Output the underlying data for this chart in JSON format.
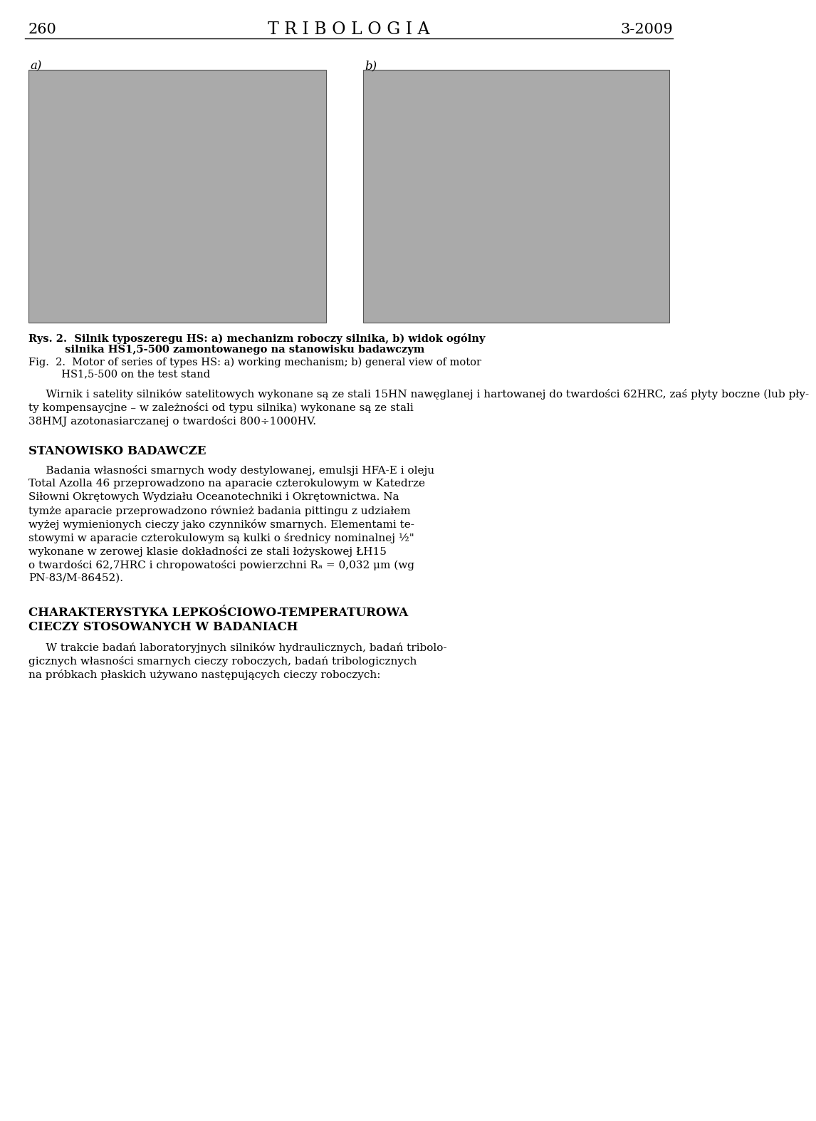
{
  "page_number": "260",
  "journal_title": "T R I B O L O G I A",
  "journal_issue": "3-2009",
  "label_a": "a)",
  "label_b": "b)",
  "rys_line1": "Rys. 2.  Silnik typoszeregu HS: a) mechanizm roboczy silnika, b) widok ogólny",
  "rys_line2": "          silnika HS1,5-500 zamontowanego na stanowisku badawczym",
  "fig_line1": "Fig.  2.  Motor of series of types HS: a) working mechanism; b) general view of motor",
  "fig_line2": "          HS1,5-500 on the test stand",
  "para1_lines": [
    "     Wirnik i satelity silników satelitowych wykonane są ze stali 15HN nawęglanej i hartowanej do twardości 62HRC, zaś płyty boczne (lub pły-",
    "ty kompensaycjne – w zależności od typu silnika) wykonane są ze stali",
    "38HMJ azotonasiarczanej o twardości 800÷1000HV."
  ],
  "section_title1": "STANOWISKO BADAWCZE",
  "para2_lines": [
    "     Badania własności smarnych wody destylowanej, emulsji HFA-E i oleju",
    "Total Azolla 46 przeprowadzono na aparacie czterokulowym w Katedrze",
    "Siłowni Okrętowych Wydziału Oceanotechniki i Okrętownictwa. Na",
    "tymże aparacie przeprowadzono również badania pittingu z udziałem",
    "wyżej wymienionych cieczy jako czynników smarnych. Elementami te-",
    "stowymi w aparacie czterokulowym są kulki o średnicy nominalnej ½\"",
    "wykonane w zerowej klasie dokładności ze stali łożyskowej ŁH15",
    "o twardości 62,7HRC i chropowatości powierzchni Rₐ = 0,032 μm (wg",
    "PN-83/M-86452)."
  ],
  "section_title2_line1": "CHARAKTERYSTYKA LEPKOŚCIOWO-TEMPERATUROWA",
  "section_title2_line2": "CIECZY STOSOWANYCH W BADANIACH",
  "para3_lines": [
    "     W trakcie badań laboratoryjnych silników hydraulicznych, badań tribolo-",
    "gicznych własności smarnych cieczy roboczych, badań tribologicznych",
    "na próbkach płaskich używano następujących cieczy roboczych:"
  ],
  "bg_color": "#ffffff",
  "text_color": "#000000"
}
